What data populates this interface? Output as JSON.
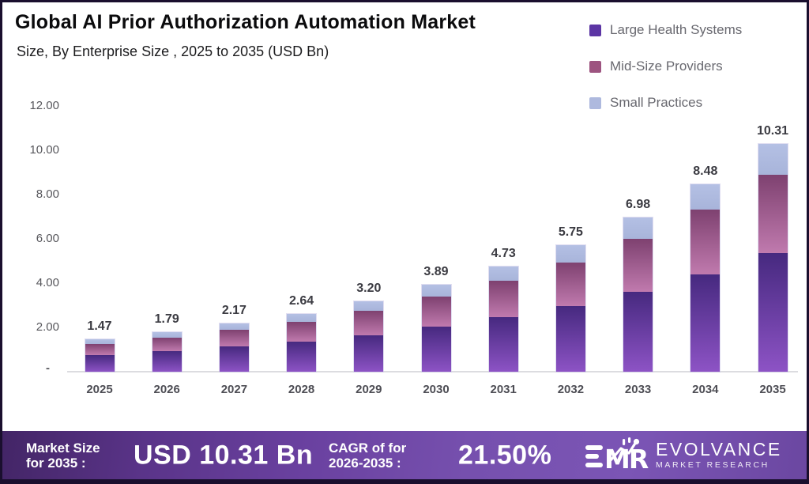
{
  "header": {
    "title": "Global AI Prior Authorization Automation Market",
    "subtitle": "Size, By Enterprise Size , 2025 to 2035 (USD Bn)"
  },
  "legend": [
    {
      "label": "Large Health Systems",
      "color": "#5c35a4"
    },
    {
      "label": "Mid-Size Providers",
      "color": "#9d5480"
    },
    {
      "label": "Small Practices",
      "color": "#aeb9de"
    }
  ],
  "chart_data": {
    "type": "bar",
    "stacked": true,
    "title": "Global AI Prior Authorization Automation Market",
    "subtitle": "Size, By Enterprise Size , 2025 to 2035 (USD Bn)",
    "unit": "USD Bn",
    "categories": [
      "2025",
      "2026",
      "2027",
      "2028",
      "2029",
      "2030",
      "2031",
      "2032",
      "2033",
      "2034",
      "2035"
    ],
    "series": [
      {
        "name": "Large Health Systems",
        "color_top": "#46297f",
        "color_bottom": "#8d53c5",
        "values": [
          0.76,
          0.93,
          1.13,
          1.37,
          1.66,
          2.02,
          2.45,
          2.98,
          3.62,
          4.4,
          5.35
        ]
      },
      {
        "name": "Mid-Size Providers",
        "color_top": "#7e4170",
        "color_bottom": "#c07aae",
        "values": [
          0.5,
          0.62,
          0.74,
          0.91,
          1.1,
          1.34,
          1.63,
          1.98,
          2.4,
          2.92,
          3.55
        ]
      },
      {
        "name": "Small Practices",
        "color_top": "#b4c0e4",
        "color_bottom": "#a8b4da",
        "values": [
          0.21,
          0.24,
          0.3,
          0.36,
          0.44,
          0.53,
          0.65,
          0.79,
          0.96,
          1.16,
          1.41
        ]
      }
    ],
    "totals": [
      "1.47",
      "1.79",
      "2.17",
      "2.64",
      "3.20",
      "3.89",
      "4.73",
      "5.75",
      "6.98",
      "8.48",
      "10.31"
    ],
    "y_ticks": [
      {
        "label": "12.00",
        "value": 12
      },
      {
        "label": "10.00",
        "value": 10
      },
      {
        "label": "8.00",
        "value": 8
      },
      {
        "label": "6.00",
        "value": 6
      },
      {
        "label": "4.00",
        "value": 4
      },
      {
        "label": "2.00",
        "value": 2
      },
      {
        "label": "-",
        "value": 0
      }
    ],
    "ylim": [
      0,
      12
    ],
    "grid": false,
    "legend_position": "top-right"
  },
  "footer": {
    "market_size_label_line1": "Market Size",
    "market_size_label_line2": "for 2035 :",
    "market_size_value": "USD 10.31 Bn",
    "cagr_label_line1": "CAGR of for",
    "cagr_label_line2": "2026-2035 :",
    "cagr_value": "21.50%",
    "brand_name": "EVOLVANCE",
    "brand_sub": "MARKET RESEARCH",
    "logo_icon": "emr-logo"
  },
  "colors": {
    "border": "#1a0f2e",
    "axis_line": "#dcdce0",
    "axis_text": "#57575c",
    "value_label": "#3b3b42",
    "footer_gradient_start": "#432566",
    "footer_gradient_mid": "#7650ae",
    "footer_gradient_end": "#6b47a1"
  }
}
